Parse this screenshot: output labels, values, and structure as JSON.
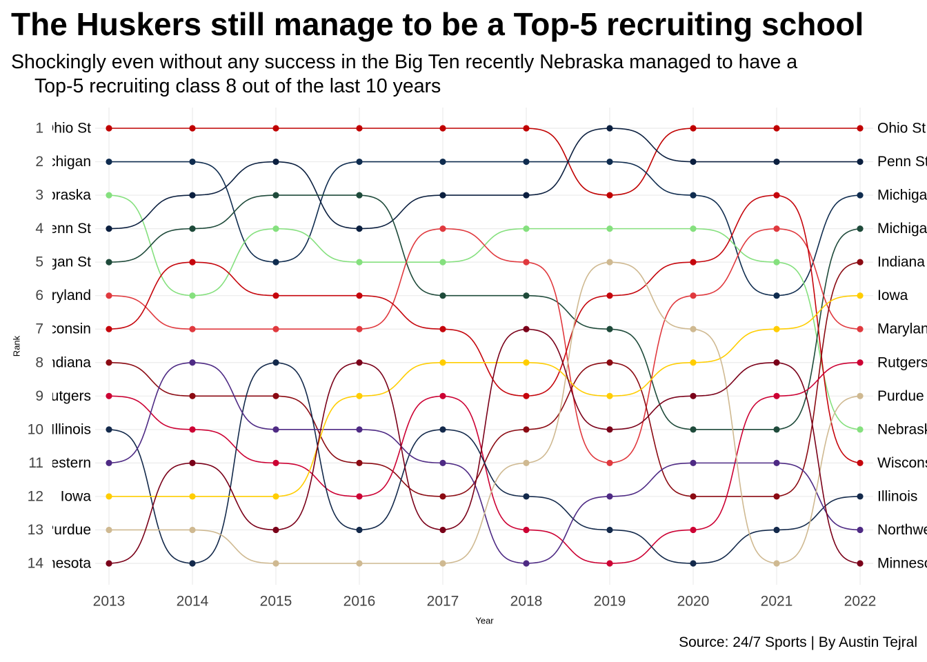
{
  "chart_data": {
    "type": "line",
    "title": "The Huskers still manage to be a Top-5 recruiting school",
    "subtitle": [
      "Shockingly even without any success in the Big Ten recently Nebraska managed to have a",
      "Top-5 recruiting class 8 out of the last 10 years"
    ],
    "caption": "Source: 24/7 Sports | By Austin Tejral",
    "xlabel": "Year",
    "ylabel": "Rank",
    "x": [
      2013,
      2014,
      2015,
      2016,
      2017,
      2018,
      2019,
      2020,
      2021,
      2022
    ],
    "y_ticks": [
      1,
      2,
      3,
      4,
      5,
      6,
      7,
      8,
      9,
      10,
      11,
      12,
      13,
      14
    ],
    "ylim": [
      14,
      1
    ],
    "grid": true,
    "series": [
      {
        "name": "Ohio St",
        "color": "#C00000",
        "values": [
          1,
          1,
          1,
          1,
          1,
          1,
          3,
          1,
          1,
          1
        ]
      },
      {
        "name": "Michigan",
        "color": "#0F2C4F",
        "values": [
          2,
          2,
          5,
          2,
          2,
          2,
          2,
          3,
          6,
          3
        ]
      },
      {
        "name": "Nebraska",
        "color": "#85E07E",
        "values": [
          3,
          6,
          4,
          5,
          5,
          4,
          4,
          4,
          5,
          10
        ]
      },
      {
        "name": "Penn St",
        "color": "#0B1F3F",
        "values": [
          4,
          3,
          2,
          4,
          3,
          3,
          1,
          2,
          2,
          2
        ]
      },
      {
        "name": "Michigan St",
        "color": "#1E4A3A",
        "values": [
          5,
          4,
          3,
          3,
          6,
          6,
          7,
          10,
          10,
          4
        ]
      },
      {
        "name": "Maryland",
        "color": "#E0393E",
        "values": [
          6,
          7,
          7,
          7,
          4,
          5,
          11,
          6,
          4,
          7
        ]
      },
      {
        "name": "Wisconsin",
        "color": "#C5050C",
        "values": [
          7,
          5,
          6,
          6,
          7,
          9,
          6,
          5,
          3,
          11
        ]
      },
      {
        "name": "Indiana",
        "color": "#8B0A12",
        "values": [
          8,
          9,
          9,
          11,
          12,
          10,
          8,
          12,
          12,
          5
        ]
      },
      {
        "name": "Rutgers",
        "color": "#CC0033",
        "values": [
          9,
          10,
          11,
          12,
          9,
          13,
          14,
          13,
          9,
          8
        ]
      },
      {
        "name": "Illinois",
        "color": "#13294B",
        "values": [
          10,
          14,
          8,
          13,
          10,
          12,
          13,
          14,
          13,
          12
        ]
      },
      {
        "name": "Northwestern",
        "color": "#4E2A84",
        "values": [
          11,
          8,
          10,
          10,
          11,
          14,
          12,
          11,
          11,
          13
        ]
      },
      {
        "name": "Iowa",
        "color": "#FFCD00",
        "values": [
          12,
          12,
          12,
          9,
          8,
          8,
          9,
          8,
          7,
          6
        ]
      },
      {
        "name": "Purdue",
        "color": "#CFB991",
        "values": [
          13,
          13,
          14,
          14,
          14,
          11,
          5,
          7,
          14,
          9
        ]
      },
      {
        "name": "Minnesota",
        "color": "#7A0019",
        "values": [
          14,
          11,
          13,
          8,
          13,
          7,
          10,
          9,
          8,
          14
        ]
      }
    ]
  }
}
